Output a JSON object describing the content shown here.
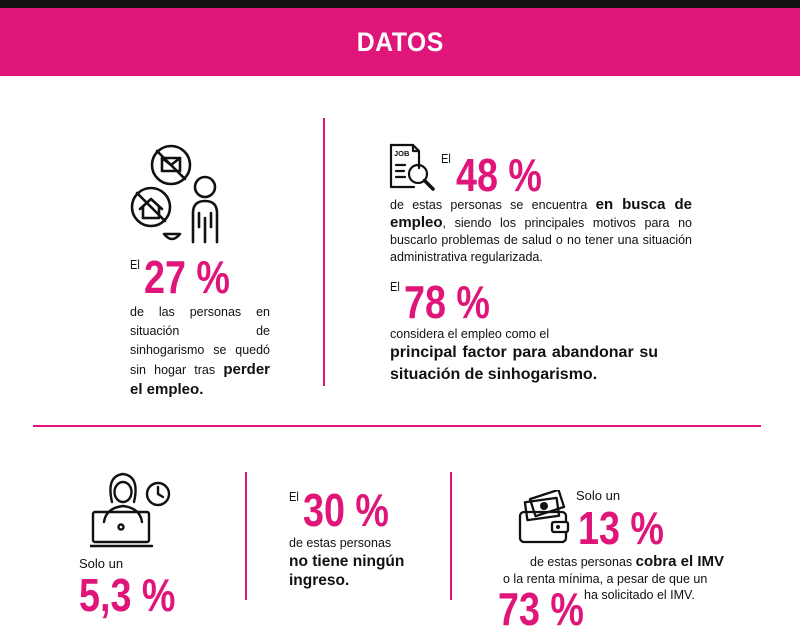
{
  "colors": {
    "accent": "#e0157a",
    "dark": "#111111",
    "divider": "#e0157a"
  },
  "header": {
    "title": "DATOS"
  },
  "stat_27": {
    "prefix": "El",
    "value": "27 %",
    "text_normal": "de las personas en situación de sinhogarismo se quedó sin hogar tras",
    "text_bold": "perder el empleo."
  },
  "stat_48": {
    "prefix": "El",
    "value": "48 %",
    "text_before": "de estas personas se encuentra",
    "text_bold": "en busca de empleo",
    "text_after": ", siendo los principales motivos para no buscarlo problemas de salud o no tener una situación administrativa regularizada."
  },
  "stat_78": {
    "prefix": "El",
    "value": "78 %",
    "text_normal": "considera el empleo como el",
    "text_bold": "principal factor para abandonar su situación de sinhogarismo."
  },
  "stat_5": {
    "prefix": "Solo un",
    "value": "5,3 %"
  },
  "stat_30": {
    "prefix": "El",
    "value": "30 %",
    "text_normal": "de estas personas",
    "text_bold": "no tiene ningún ingreso."
  },
  "stat_13": {
    "prefix": "Solo un",
    "value": "13 %",
    "text_before": "de estas personas",
    "text_bold": "cobra el IMV",
    "text_after": "o la renta mínima, a pesar de que un",
    "text_last": "ha solicitado el IMV.",
    "partial_value": "73 %"
  },
  "icons": {
    "icon_27": "homeless-person-icon",
    "icon_48": "job-search-icon",
    "icon_5": "remote-worker-clock-icon",
    "icon_13": "wallet-money-icon"
  },
  "job_icon_label": "JOB"
}
